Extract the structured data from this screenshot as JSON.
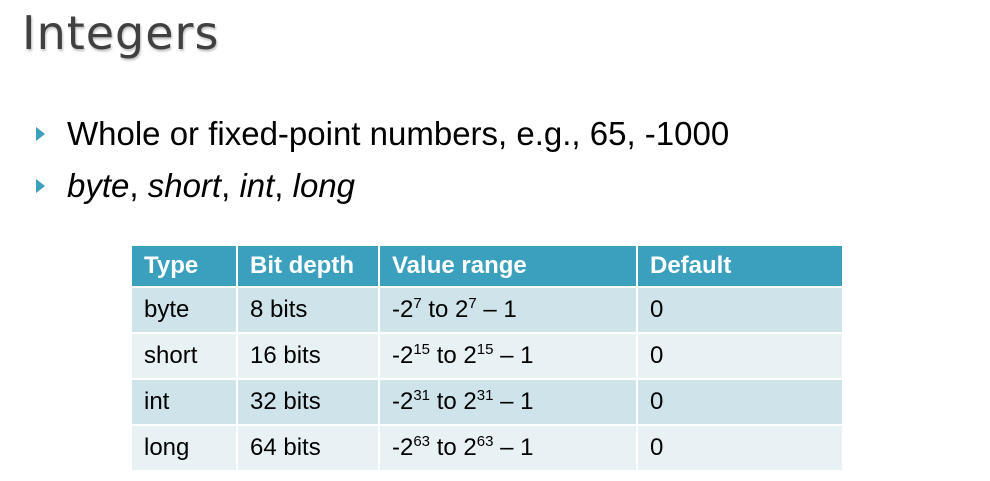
{
  "slide": {
    "title": "Integers",
    "accent_color": "#3aa0bd",
    "bullets": [
      {
        "text": "Whole or fixed-point numbers, e.g., 65, -1000"
      },
      {
        "types": [
          "byte",
          "short",
          "int",
          "long"
        ],
        "separator": ", "
      }
    ]
  },
  "table": {
    "headers": [
      "Type",
      "Bit depth",
      "Value range",
      "Default"
    ],
    "rows": [
      {
        "type": "byte",
        "bits": "8 bits",
        "range_base_neg": "-2",
        "range_exp_neg": "7",
        "range_mid": " to 2",
        "range_exp_pos": "7",
        "range_tail": " – 1",
        "default": "0"
      },
      {
        "type": "short",
        "bits": "16 bits",
        "range_base_neg": "-2",
        "range_exp_neg": "15",
        "range_mid": " to 2",
        "range_exp_pos": "15",
        "range_tail": " – 1",
        "default": "0"
      },
      {
        "type": "int",
        "bits": "32 bits",
        "range_base_neg": "-2",
        "range_exp_neg": "31",
        "range_mid": " to 2",
        "range_exp_pos": "31",
        "range_tail": " – 1",
        "default": "0"
      },
      {
        "type": "long",
        "bits": "64 bits",
        "range_base_neg": "-2",
        "range_exp_neg": "63",
        "range_mid": " to 2",
        "range_exp_pos": "63",
        "range_tail": " – 1",
        "default": "0"
      }
    ]
  }
}
